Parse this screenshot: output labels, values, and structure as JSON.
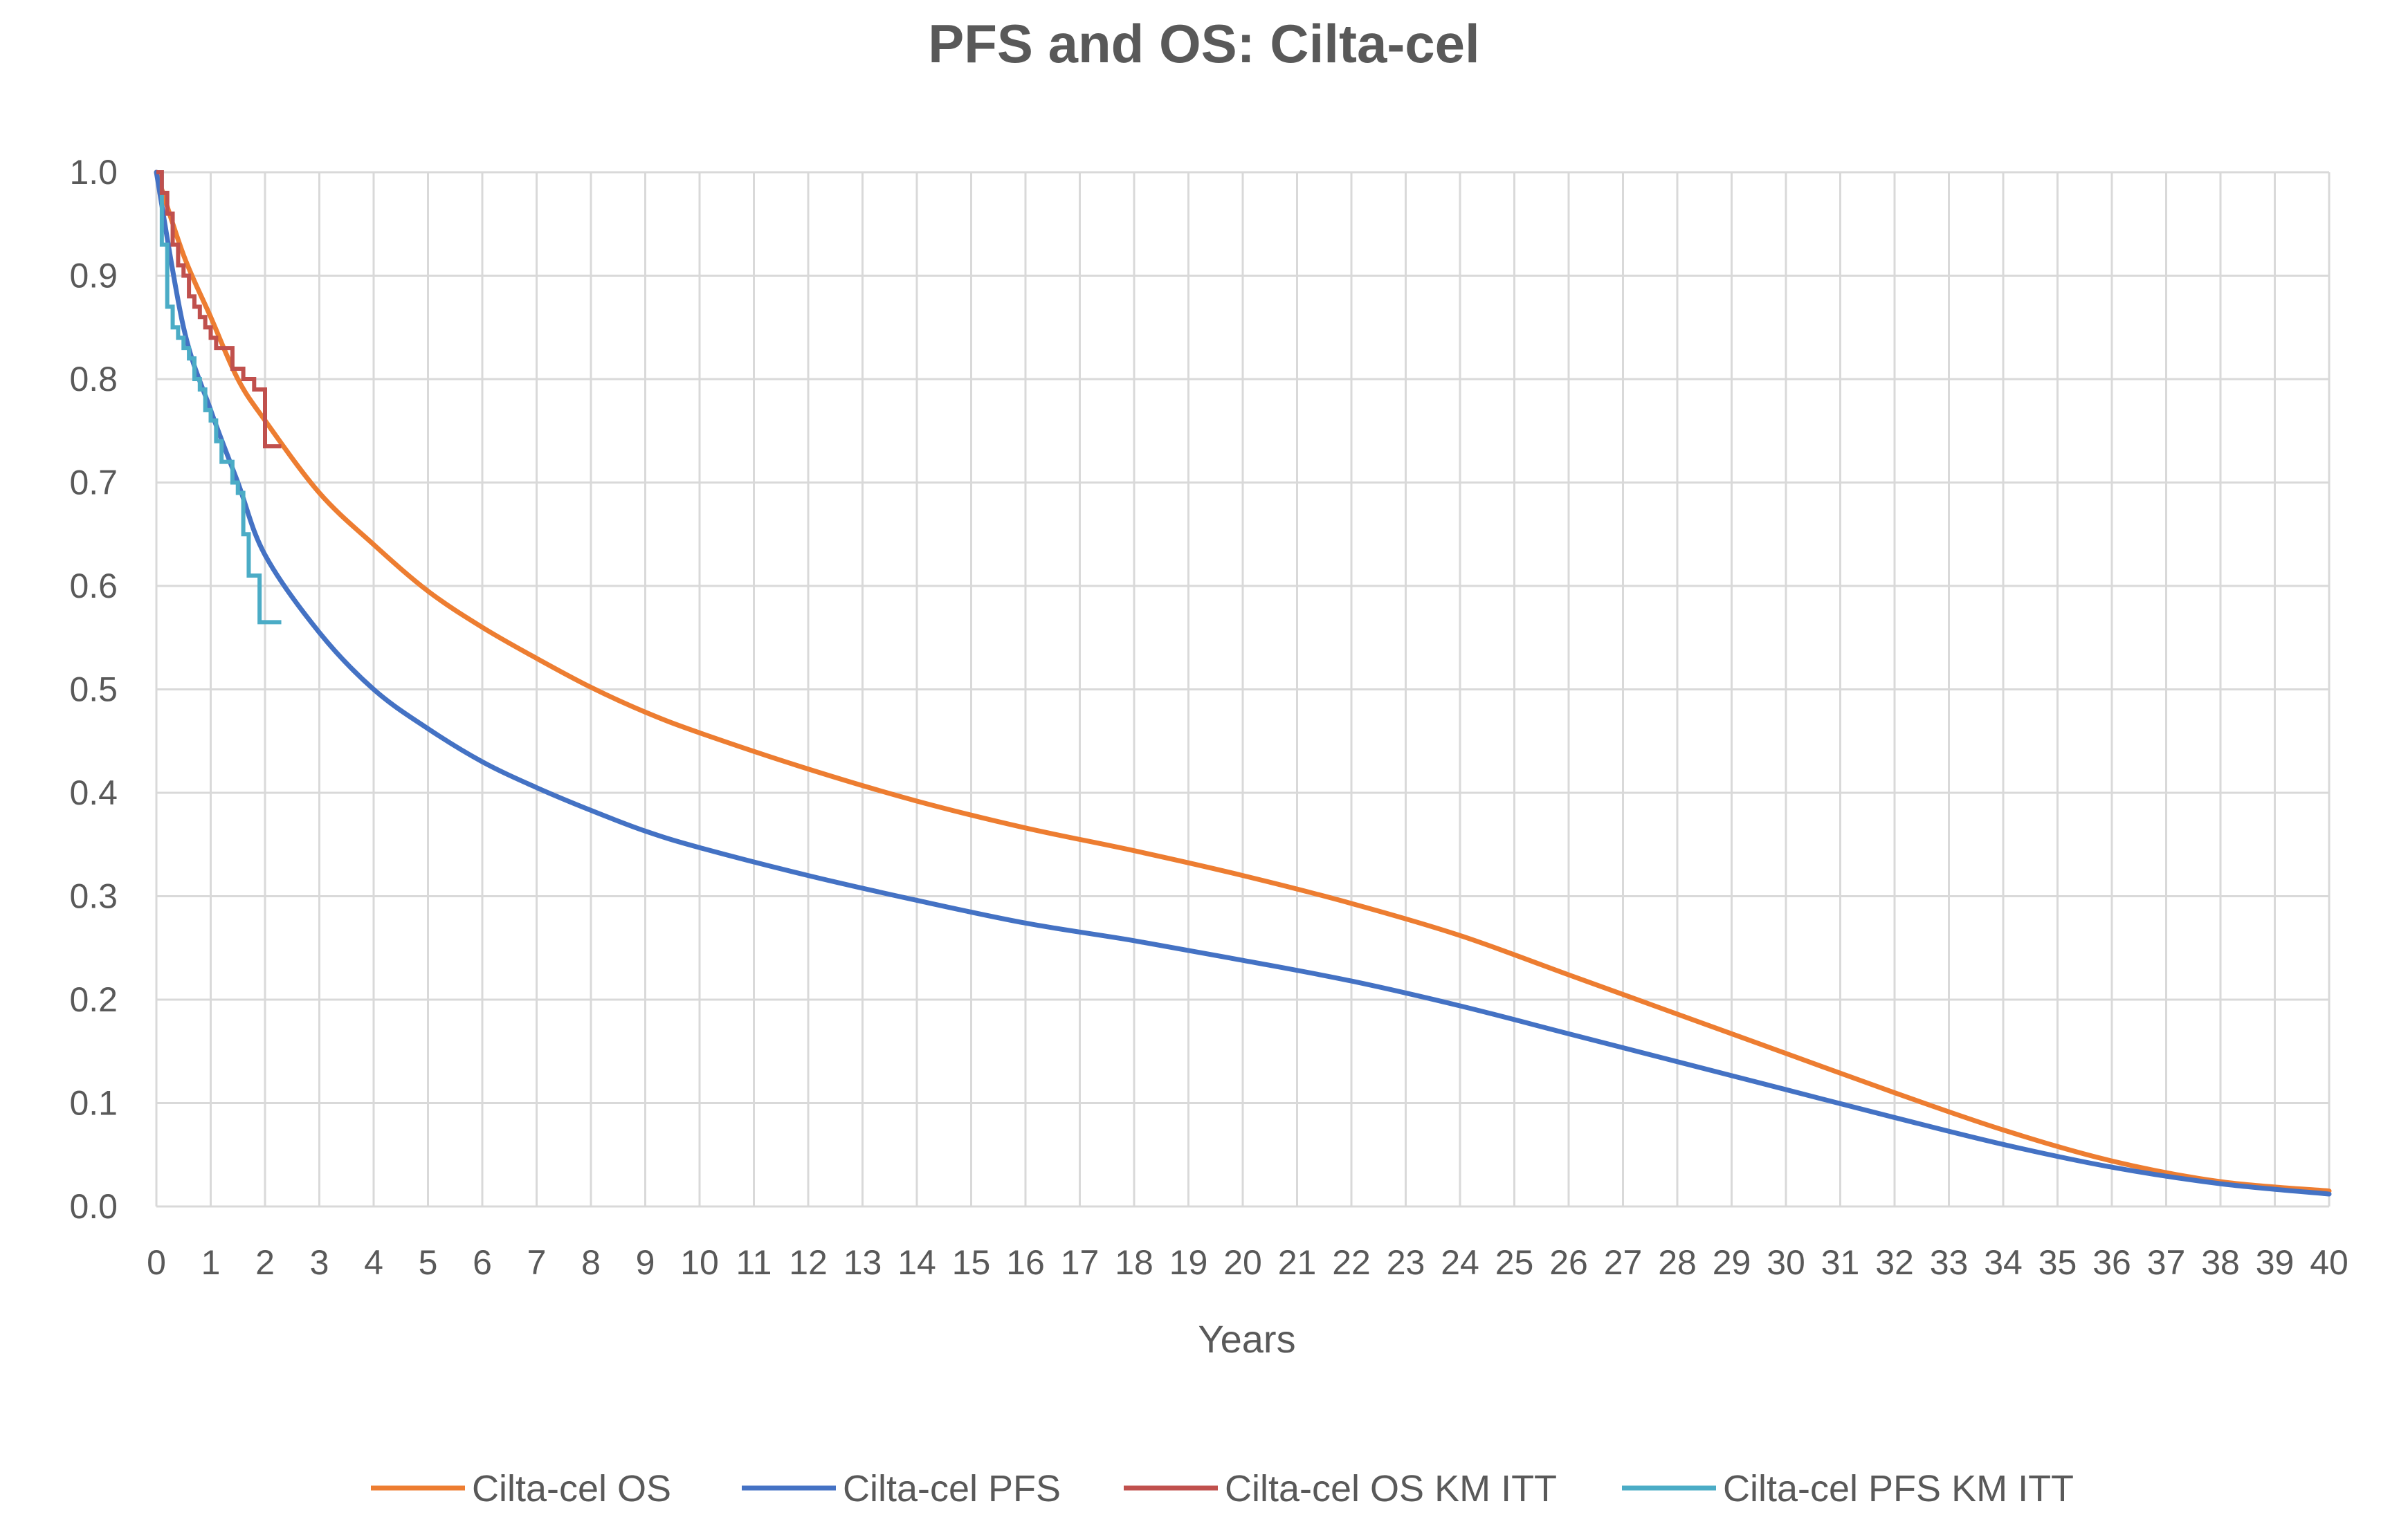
{
  "chart_data": {
    "type": "line",
    "title": "PFS and OS: Cilta-cel",
    "xlabel": "Years",
    "ylabel": "",
    "xlim": [
      0,
      40
    ],
    "ylim": [
      0,
      1.0
    ],
    "x_ticks": [
      "0",
      "1",
      "2",
      "3",
      "4",
      "5",
      "6",
      "7",
      "8",
      "9",
      "10",
      "11",
      "12",
      "13",
      "14",
      "15",
      "16",
      "17",
      "18",
      "19",
      "20",
      "21",
      "22",
      "23",
      "24",
      "25",
      "26",
      "27",
      "28",
      "29",
      "30",
      "31",
      "32",
      "33",
      "34",
      "35",
      "36",
      "37",
      "38",
      "39",
      "40"
    ],
    "y_ticks": [
      "0.0",
      "0.1",
      "0.2",
      "0.3",
      "0.4",
      "0.5",
      "0.6",
      "0.7",
      "0.8",
      "0.9",
      "1.0"
    ],
    "grid": true,
    "legend_position": "bottom",
    "series": [
      {
        "name": "Cilta-cel OS",
        "color": "#ED7D31",
        "style": "smooth",
        "x": [
          0,
          0.5,
          1,
          1.5,
          2,
          3,
          4,
          5,
          6,
          7,
          8,
          9,
          10,
          12,
          14,
          16,
          18,
          20,
          22,
          24,
          26,
          28,
          30,
          32,
          34,
          36,
          38,
          40
        ],
        "y": [
          1.0,
          0.92,
          0.86,
          0.8,
          0.76,
          0.69,
          0.64,
          0.595,
          0.56,
          0.53,
          0.502,
          0.478,
          0.458,
          0.423,
          0.392,
          0.366,
          0.344,
          0.32,
          0.293,
          0.262,
          0.224,
          0.186,
          0.148,
          0.11,
          0.074,
          0.044,
          0.024,
          0.015
        ]
      },
      {
        "name": "Cilta-cel PFS",
        "color": "#4472C4",
        "style": "smooth",
        "x": [
          0,
          0.5,
          1,
          1.5,
          2,
          3,
          4,
          5,
          6,
          7,
          8,
          9,
          10,
          12,
          14,
          16,
          18,
          20,
          22,
          24,
          26,
          28,
          30,
          32,
          34,
          36,
          38,
          40
        ],
        "y": [
          1.0,
          0.85,
          0.77,
          0.7,
          0.63,
          0.555,
          0.5,
          0.462,
          0.43,
          0.405,
          0.383,
          0.363,
          0.347,
          0.32,
          0.296,
          0.274,
          0.257,
          0.238,
          0.218,
          0.194,
          0.167,
          0.14,
          0.113,
          0.086,
          0.06,
          0.038,
          0.022,
          0.012
        ]
      },
      {
        "name": "Cilta-cel OS KM ITT",
        "color": "#C0504D",
        "style": "step",
        "x": [
          0,
          0.1,
          0.2,
          0.3,
          0.4,
          0.5,
          0.6,
          0.7,
          0.8,
          0.9,
          1.0,
          1.1,
          1.2,
          1.4,
          1.6,
          1.8,
          2.0,
          2.3
        ],
        "y": [
          1.0,
          0.98,
          0.96,
          0.93,
          0.91,
          0.9,
          0.88,
          0.87,
          0.86,
          0.85,
          0.84,
          0.83,
          0.83,
          0.81,
          0.8,
          0.79,
          0.735,
          0.735
        ]
      },
      {
        "name": "Cilta-cel PFS KM ITT",
        "color": "#4BACC6",
        "style": "step",
        "x": [
          0,
          0.1,
          0.2,
          0.3,
          0.4,
          0.5,
          0.6,
          0.7,
          0.8,
          0.9,
          1.0,
          1.1,
          1.2,
          1.3,
          1.4,
          1.5,
          1.6,
          1.7,
          1.9,
          2.3
        ],
        "y": [
          1.0,
          0.93,
          0.87,
          0.85,
          0.84,
          0.83,
          0.82,
          0.8,
          0.79,
          0.77,
          0.76,
          0.74,
          0.72,
          0.72,
          0.7,
          0.69,
          0.65,
          0.61,
          0.565,
          0.565
        ]
      }
    ]
  }
}
